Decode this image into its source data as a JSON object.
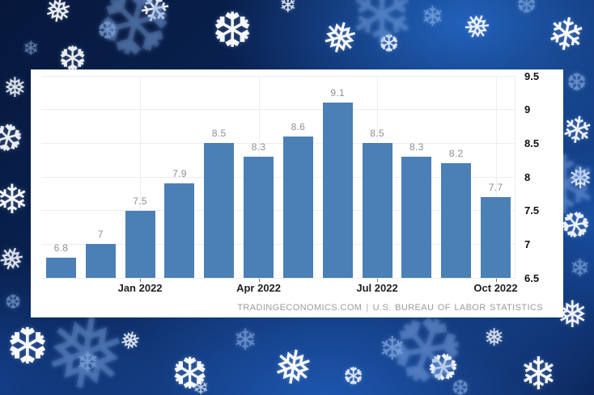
{
  "window": {
    "background_theme": "winter snowflakes wallpaper"
  },
  "icons": {
    "snowflake_glyphs": [
      "❄",
      "❅",
      "❆"
    ]
  },
  "colors": {
    "bar": "#4a80b5",
    "panel_background": "#ffffff",
    "wallpaper_navy": "#0a2456",
    "gridline": "#ededed",
    "value_label": "#8f8f8f",
    "axis_label": "#1a1a1a",
    "attribution": "#9b9b9b"
  },
  "chart_data": {
    "type": "bar",
    "title": "",
    "values": [
      6.8,
      7,
      7.5,
      7.9,
      8.5,
      8.3,
      8.6,
      9.1,
      8.5,
      8.3,
      8.2,
      7.7
    ],
    "bar_value_labels": [
      "6.8",
      "7",
      "7.5",
      "7.9",
      "8.5",
      "8.3",
      "8.6",
      "9.1",
      "8.5",
      "8.3",
      "8.2",
      "7.7"
    ],
    "x_ticks": [
      {
        "label": "Jan 2022",
        "bar_index": 2
      },
      {
        "label": "Apr 2022",
        "bar_index": 5
      },
      {
        "label": "Jul 2022",
        "bar_index": 8
      },
      {
        "label": "Oct 2022",
        "bar_index": 11
      }
    ],
    "y_ticks": [
      "9.5",
      "9",
      "8.5",
      "8",
      "7.5",
      "7",
      "6.5"
    ],
    "ylim": [
      6.5,
      9.5
    ],
    "y_axis_position": "right",
    "grid": "horizontal lines every 0.5, faint vertical lines at quarter ticks",
    "bar_color": "#4a80b5",
    "attribution": {
      "source": "TRADINGECONOMICS.COM",
      "separator": "|",
      "provider": "U.S. BUREAU OF LABOR STATISTICS"
    }
  }
}
